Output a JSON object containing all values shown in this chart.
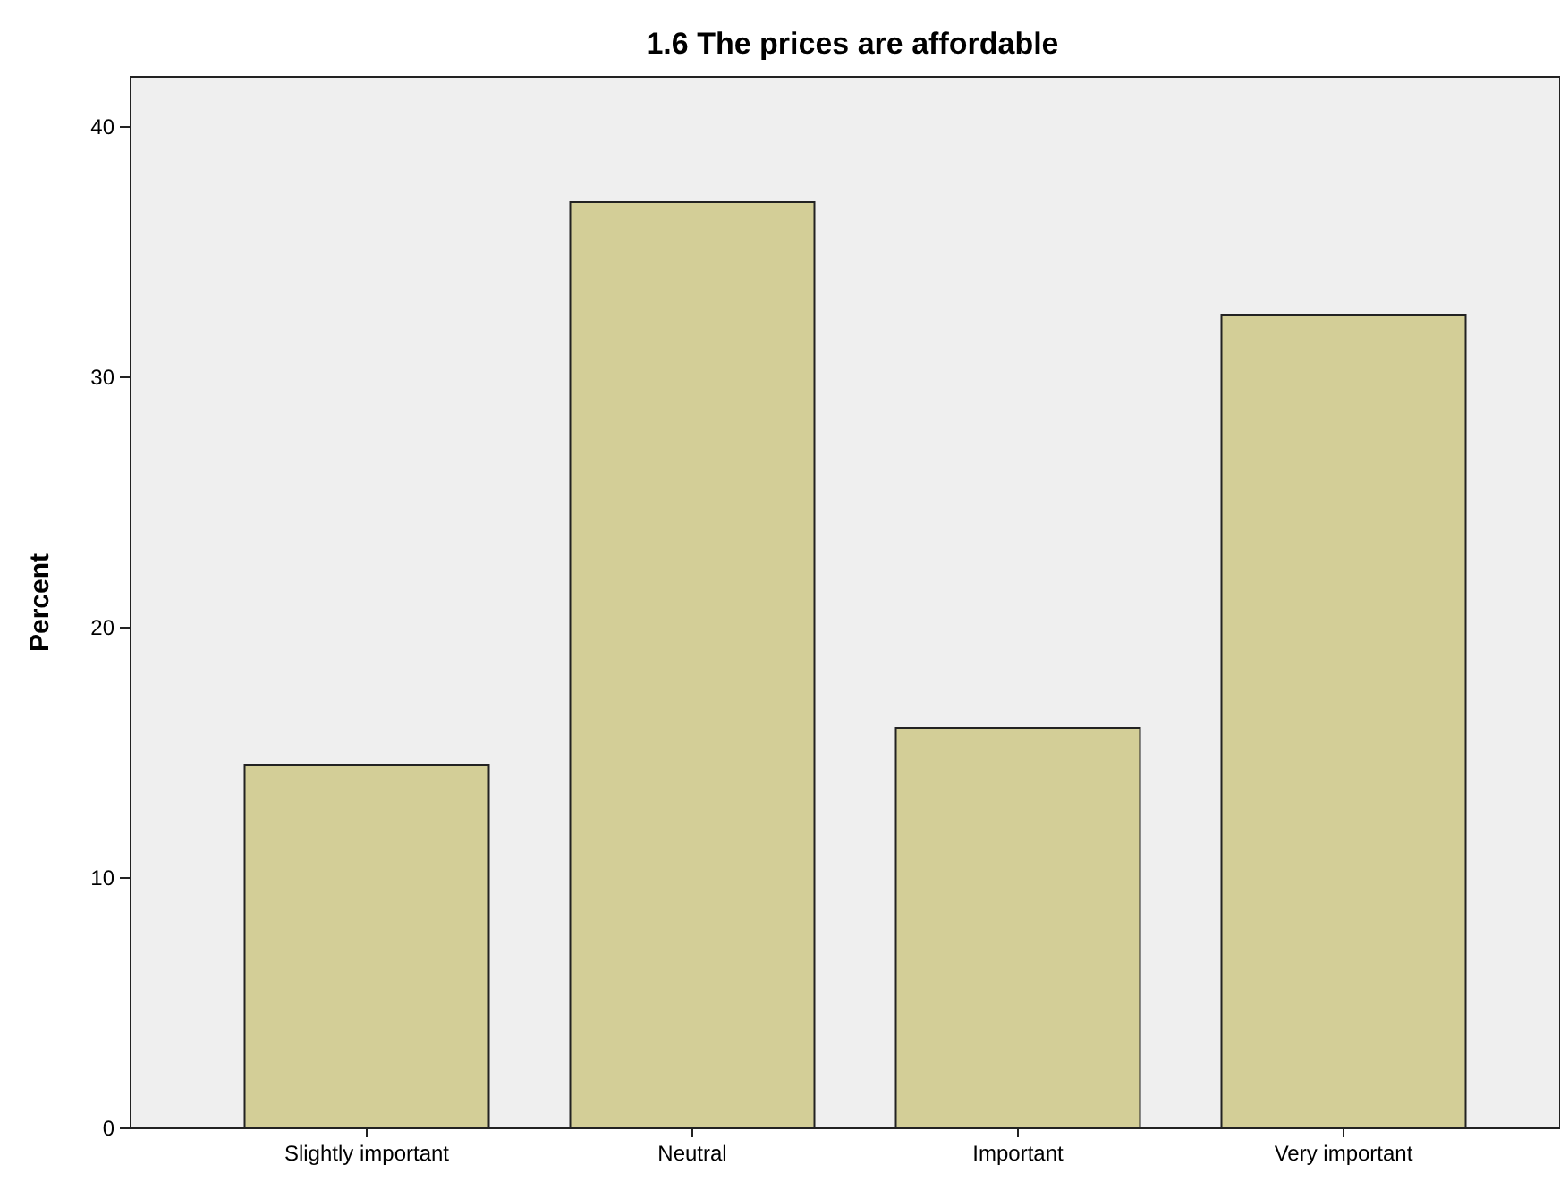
{
  "chart_data": {
    "type": "bar",
    "title": "1.6 The prices are affordable",
    "ylabel": "Percent",
    "categories": [
      "Slightly important",
      "Neutral",
      "Important",
      "Very important"
    ],
    "values": [
      14.5,
      37.0,
      16.0,
      32.5
    ],
    "color": "#d3ce97",
    "ylim": [
      0,
      42
    ],
    "yticks": [
      0,
      10,
      20,
      30,
      40
    ],
    "grid": false
  }
}
